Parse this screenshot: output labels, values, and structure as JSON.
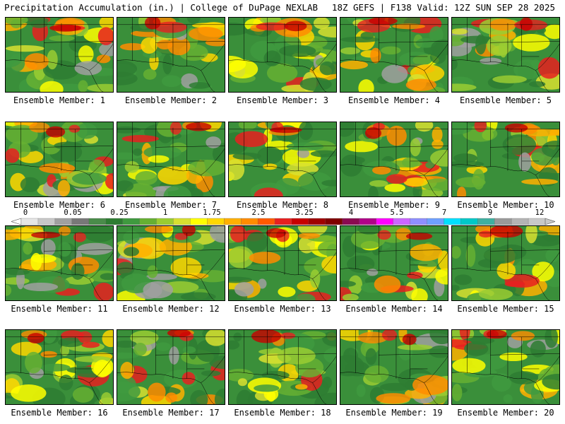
{
  "header": {
    "left": "Precipitation Accumulation (in.) | College of DuPage NEXLAB",
    "right": "18Z GEFS | F138 Valid: 12Z SUN SEP 28 2025"
  },
  "panels": [
    {
      "caption": "Ensemble Member: 1"
    },
    {
      "caption": "Ensemble Member: 2"
    },
    {
      "caption": "Ensemble Member: 3"
    },
    {
      "caption": "Ensemble Member: 4"
    },
    {
      "caption": "Ensemble Member: 5"
    },
    {
      "caption": "Ensemble Member: 6"
    },
    {
      "caption": "Ensemble Member: 7"
    },
    {
      "caption": "Ensemble Member: 8"
    },
    {
      "caption": "Ensemble Member: 9"
    },
    {
      "caption": "Ensemble Member: 10"
    },
    {
      "caption": "Ensemble Member: 11"
    },
    {
      "caption": "Ensemble Member: 12"
    },
    {
      "caption": "Ensemble Member: 13"
    },
    {
      "caption": "Ensemble Member: 14"
    },
    {
      "caption": "Ensemble Member: 15"
    },
    {
      "caption": "Ensemble Member: 16"
    },
    {
      "caption": "Ensemble Member: 17"
    },
    {
      "caption": "Ensemble Member: 18"
    },
    {
      "caption": "Ensemble Member: 19"
    },
    {
      "caption": "Ensemble Member: 20"
    }
  ],
  "colorbar": {
    "labels": [
      "0",
      "0.05",
      "0.25",
      "1",
      "1.75",
      "2.5",
      "3.25",
      "4",
      "5.5",
      "7",
      "9",
      "12"
    ],
    "colors": [
      "#e6e6e6",
      "#c8c8c8",
      "#a0a0a0",
      "#787878",
      "#4a8c4a",
      "#2e7d32",
      "#3f9a3f",
      "#66b032",
      "#9acd32",
      "#d8e030",
      "#ffff00",
      "#ffd700",
      "#ffb000",
      "#ff8c00",
      "#ff5a00",
      "#e82020",
      "#c80000",
      "#a00000",
      "#800000",
      "#8b0a50",
      "#b00088",
      "#ff00ff",
      "#cc66ff",
      "#8f8fff",
      "#6fa0ff",
      "#00e0ff",
      "#00c8c8",
      "#40b0a0",
      "#9a9a9a",
      "#b4b4b4",
      "#c8c8c8"
    ]
  }
}
